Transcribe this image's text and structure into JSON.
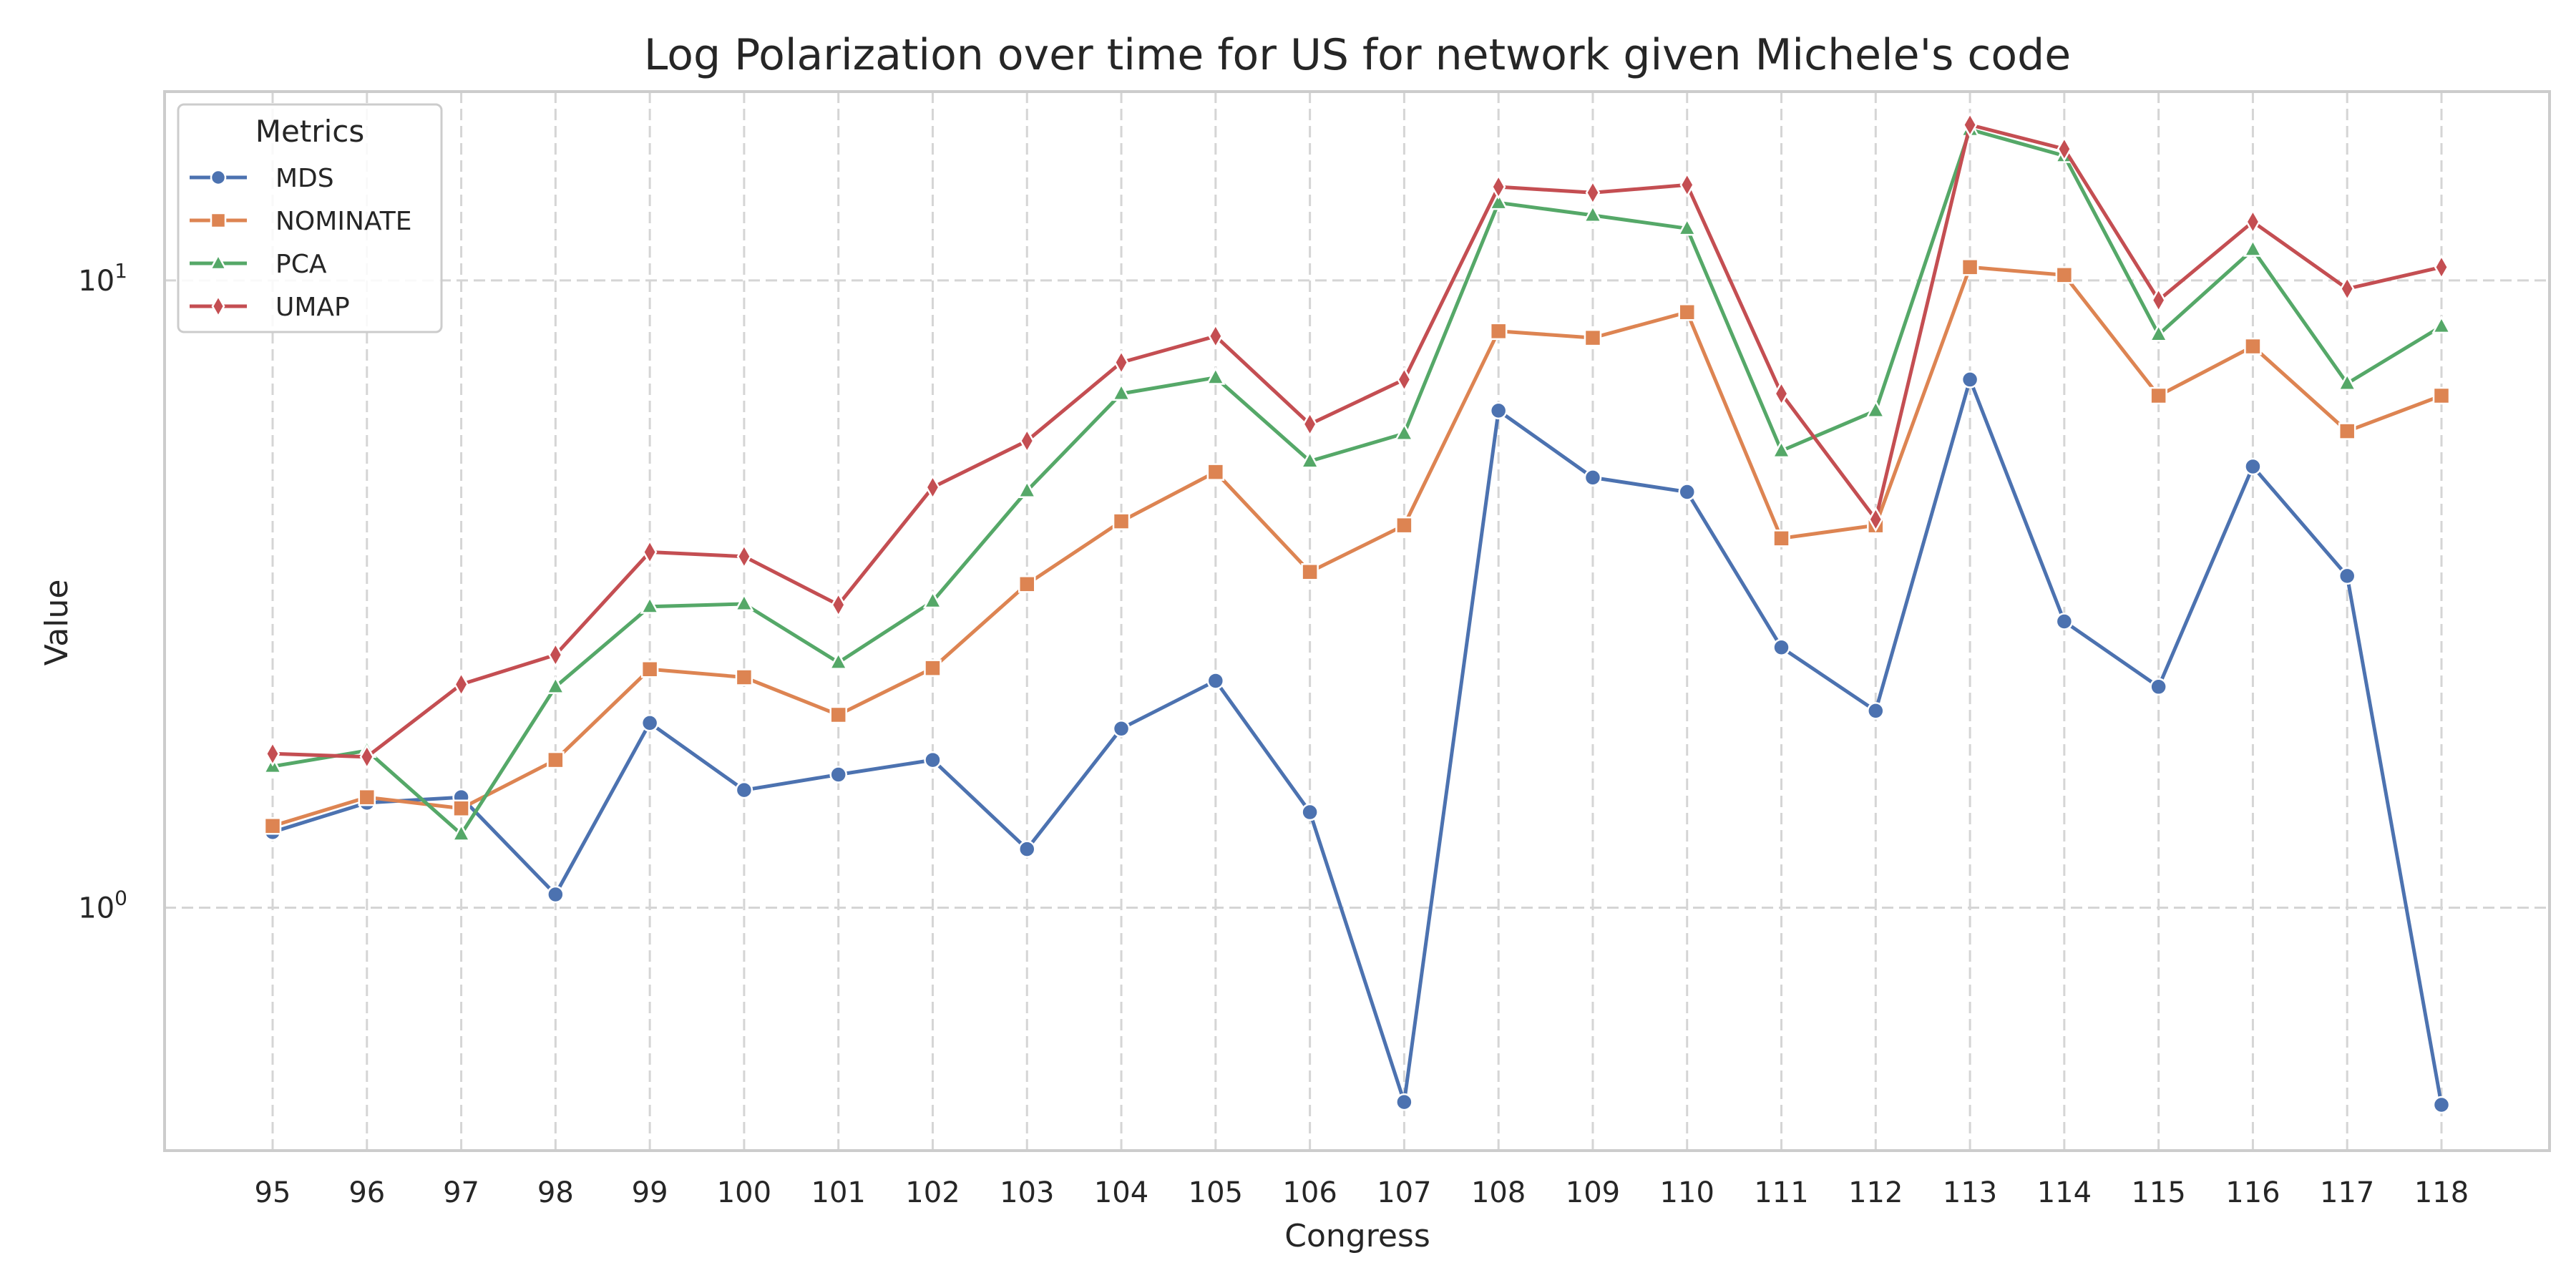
{
  "chart_data": {
    "type": "line",
    "title": "Log Polarization over time for US for network given Michele's code",
    "xlabel": "Congress",
    "ylabel": "Value",
    "yscale": "log",
    "ylim": [
      0.41,
      20
    ],
    "y_ticks": [
      {
        "value": 1,
        "base": "10",
        "exp": "0"
      },
      {
        "value": 10,
        "base": "10",
        "exp": "1"
      }
    ],
    "grid": true,
    "legend": {
      "title": "Metrics",
      "position": "top-left"
    },
    "categories": [
      "95",
      "96",
      "97",
      "98",
      "99",
      "100",
      "101",
      "102",
      "103",
      "104",
      "105",
      "106",
      "107",
      "108",
      "109",
      "110",
      "111",
      "112",
      "113",
      "114",
      "115",
      "116",
      "117",
      "118"
    ],
    "series": [
      {
        "name": "MDS",
        "color": "#4c72b0",
        "marker": "circle",
        "values": [
          1.32,
          1.47,
          1.5,
          1.05,
          1.97,
          1.54,
          1.63,
          1.72,
          1.24,
          1.93,
          2.3,
          1.42,
          0.49,
          6.2,
          4.85,
          4.6,
          2.6,
          2.06,
          6.95,
          2.86,
          2.25,
          5.05,
          3.38,
          0.485
        ]
      },
      {
        "name": "NOMINATE",
        "color": "#dd8452",
        "marker": "square",
        "values": [
          1.35,
          1.5,
          1.44,
          1.72,
          2.4,
          2.33,
          2.03,
          2.41,
          3.28,
          4.13,
          4.95,
          3.43,
          4.07,
          8.3,
          8.1,
          8.9,
          3.88,
          4.07,
          10.5,
          10.2,
          6.55,
          7.85,
          5.75,
          6.55
        ]
      },
      {
        "name": "PCA",
        "color": "#55a868",
        "marker": "triangle",
        "values": [
          1.68,
          1.78,
          1.31,
          2.25,
          3.02,
          3.05,
          2.46,
          3.08,
          4.62,
          6.6,
          7.0,
          5.15,
          5.7,
          13.3,
          12.7,
          12.1,
          5.35,
          6.2,
          17.4,
          15.8,
          8.2,
          11.2,
          6.85,
          8.45
        ]
      },
      {
        "name": "UMAP",
        "color": "#c44e52",
        "marker": "diamond",
        "values": [
          1.76,
          1.74,
          2.27,
          2.53,
          3.69,
          3.63,
          3.04,
          4.68,
          5.55,
          7.4,
          8.15,
          5.9,
          6.95,
          14.1,
          13.8,
          14.2,
          6.6,
          4.16,
          17.7,
          16.2,
          9.3,
          12.4,
          9.7,
          10.5
        ]
      }
    ]
  }
}
